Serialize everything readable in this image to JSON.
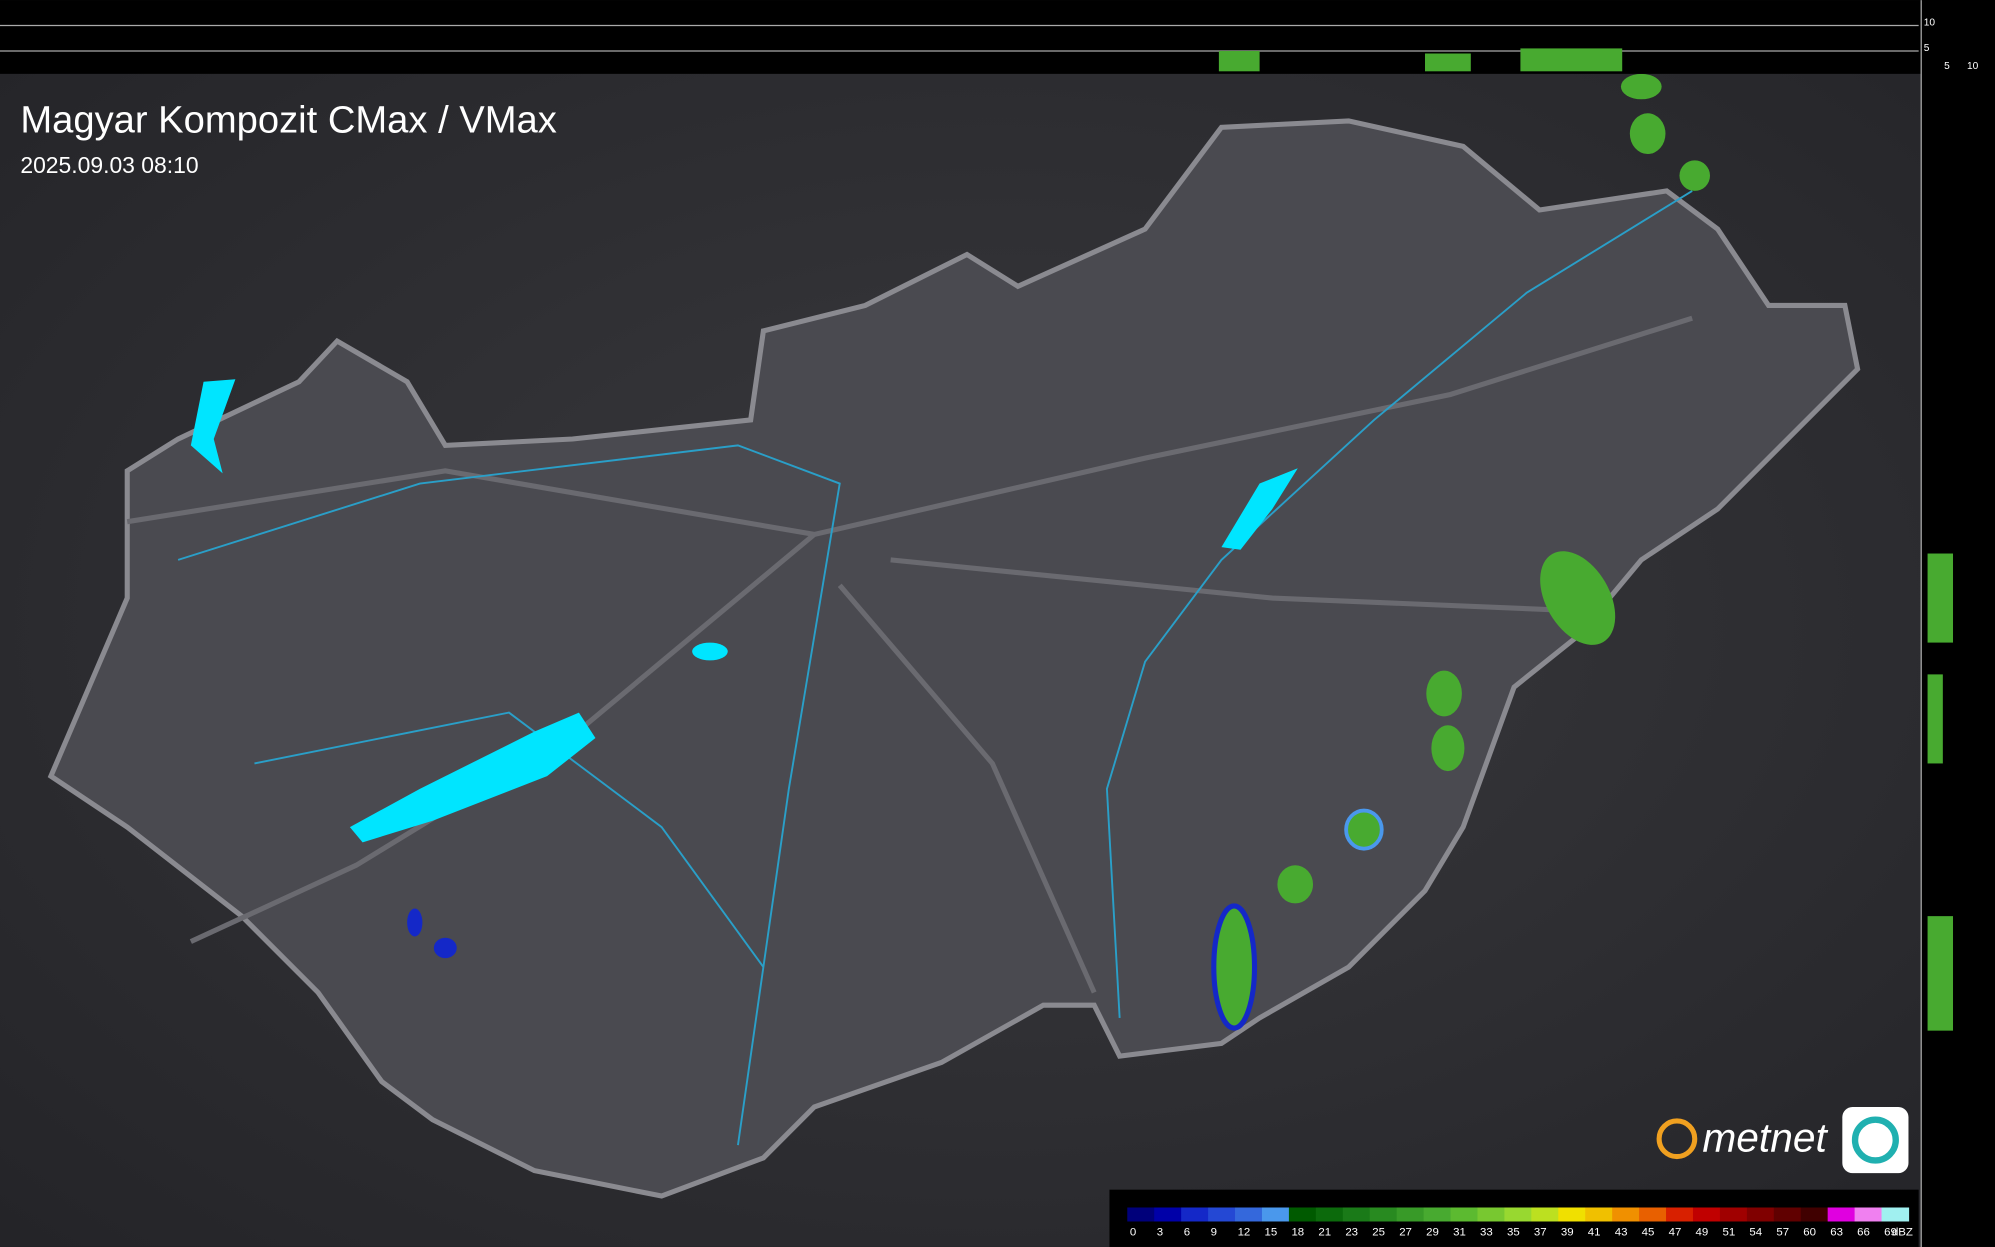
{
  "header": {
    "title": "Magyar Kompozit CMax / VMax",
    "timestamp": "2025.09.03 08:10"
  },
  "profile_axes": {
    "top": [
      "10",
      "5"
    ],
    "side": [
      "5",
      "10"
    ]
  },
  "logo": "metnet",
  "legend": {
    "unit": "dBZ",
    "items": [
      {
        "label": "0",
        "color": "#00007a"
      },
      {
        "label": "3",
        "color": "#0000a8"
      },
      {
        "label": "6",
        "color": "#1428c8"
      },
      {
        "label": "9",
        "color": "#2448d4"
      },
      {
        "label": "12",
        "color": "#3468dc"
      },
      {
        "label": "15",
        "color": "#4a98ec"
      },
      {
        "label": "18",
        "color": "#005a00"
      },
      {
        "label": "21",
        "color": "#0c6a0c"
      },
      {
        "label": "23",
        "color": "#1a7a18"
      },
      {
        "label": "25",
        "color": "#288a20"
      },
      {
        "label": "27",
        "color": "#389a28"
      },
      {
        "label": "29",
        "color": "#48aa30"
      },
      {
        "label": "31",
        "color": "#5cba30"
      },
      {
        "label": "33",
        "color": "#78c830"
      },
      {
        "label": "35",
        "color": "#98d830"
      },
      {
        "label": "37",
        "color": "#bce020"
      },
      {
        "label": "39",
        "color": "#f0e000"
      },
      {
        "label": "41",
        "color": "#f0c000"
      },
      {
        "label": "43",
        "color": "#f09000"
      },
      {
        "label": "45",
        "color": "#e86000"
      },
      {
        "label": "47",
        "color": "#d82000"
      },
      {
        "label": "49",
        "color": "#c00000"
      },
      {
        "label": "51",
        "color": "#a00000"
      },
      {
        "label": "54",
        "color": "#800000"
      },
      {
        "label": "57",
        "color": "#600000"
      },
      {
        "label": "60",
        "color": "#400000"
      },
      {
        "label": "63",
        "color": "#e000e0"
      },
      {
        "label": "66",
        "color": "#f080f0"
      },
      {
        "label": "69",
        "color": "#a0f0f0"
      }
    ]
  }
}
